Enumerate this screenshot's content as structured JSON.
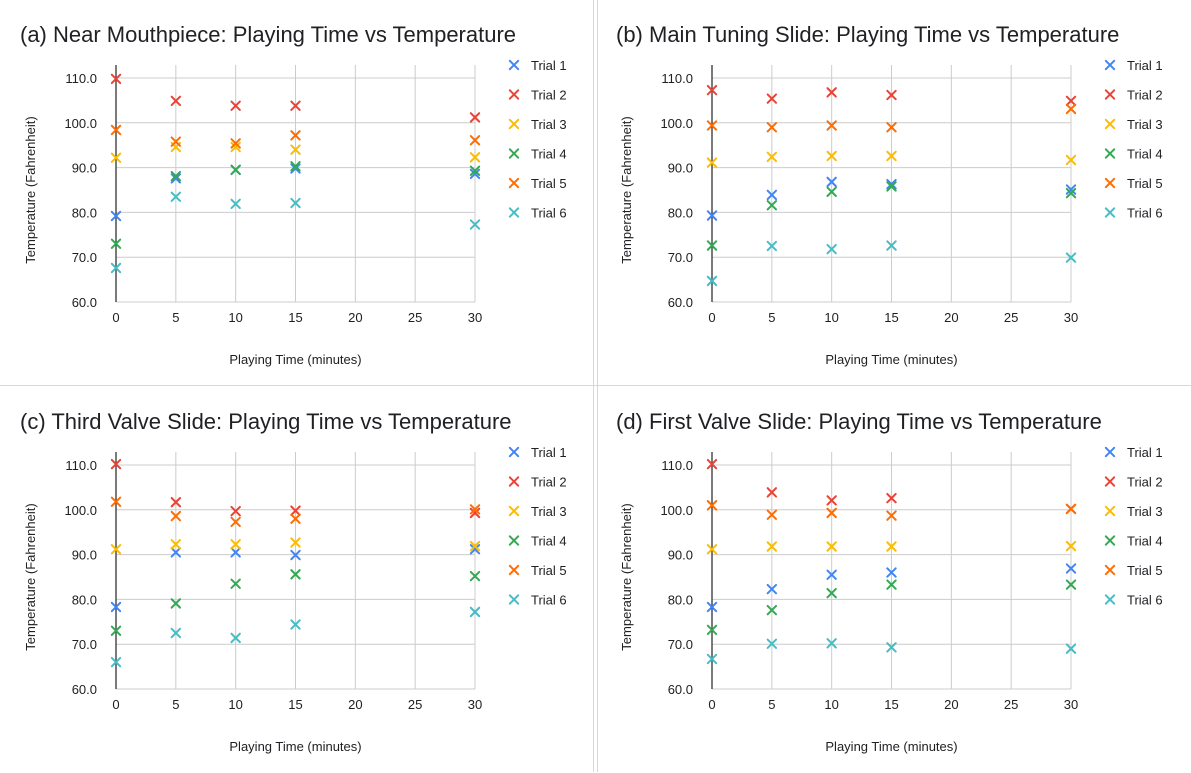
{
  "chart_data": [
    {
      "type": "scatter",
      "title": "(a) Near Mouthpiece: Playing Time vs Temperature",
      "xlabel": "Playing Time (minutes)",
      "ylabel": "Temperature (Fahrenheit)",
      "xlim": [
        0,
        30
      ],
      "ylim": [
        60,
        110
      ],
      "xticks": [
        0,
        5,
        10,
        15,
        20,
        25,
        30
      ],
      "yticks": [
        "60.0",
        "70.0",
        "80.0",
        "90.0",
        "100.0",
        "110.0"
      ],
      "grid": true,
      "legend": "right",
      "marker": "x",
      "x": [
        0,
        5,
        10,
        15,
        30
      ],
      "series": [
        {
          "name": "Trial 1",
          "color": "#4285F4",
          "values": [
            79.2,
            87.6,
            89.5,
            89.8,
            88.6
          ]
        },
        {
          "name": "Trial 2",
          "color": "#EA4335",
          "values": [
            109.8,
            104.9,
            103.8,
            103.8,
            101.2
          ]
        },
        {
          "name": "Trial 3",
          "color": "#FBBC04",
          "values": [
            92.2,
            94.6,
            94.6,
            94.0,
            92.3
          ]
        },
        {
          "name": "Trial 4",
          "color": "#34A853",
          "values": [
            73.0,
            88.1,
            89.5,
            90.3,
            89.3
          ]
        },
        {
          "name": "Trial 5",
          "color": "#FF6D01",
          "values": [
            98.4,
            95.8,
            95.4,
            97.2,
            96.1
          ]
        },
        {
          "name": "Trial 6",
          "color": "#46BDC6",
          "values": [
            67.6,
            83.5,
            81.9,
            82.1,
            77.3
          ]
        }
      ]
    },
    {
      "type": "scatter",
      "title": "(b) Main Tuning Slide: Playing Time vs Temperature",
      "xlabel": "Playing Time (minutes)",
      "ylabel": "Temperature (Fahrenheit)",
      "xlim": [
        0,
        30
      ],
      "ylim": [
        60,
        110
      ],
      "xticks": [
        0,
        5,
        10,
        15,
        20,
        25,
        30
      ],
      "yticks": [
        "60.0",
        "70.0",
        "80.0",
        "90.0",
        "100.0",
        "110.0"
      ],
      "grid": true,
      "legend": "right",
      "marker": "x",
      "x": [
        0,
        5,
        10,
        15,
        30
      ],
      "series": [
        {
          "name": "Trial 1",
          "color": "#4285F4",
          "values": [
            79.3,
            83.9,
            86.8,
            86.3,
            85.1
          ]
        },
        {
          "name": "Trial 2",
          "color": "#EA4335",
          "values": [
            107.3,
            105.4,
            106.8,
            106.2,
            104.9
          ]
        },
        {
          "name": "Trial 3",
          "color": "#FBBC04",
          "values": [
            91.1,
            92.4,
            92.6,
            92.6,
            91.7
          ]
        },
        {
          "name": "Trial 4",
          "color": "#34A853",
          "values": [
            72.6,
            81.6,
            84.6,
            85.8,
            84.3
          ]
        },
        {
          "name": "Trial 5",
          "color": "#FF6D01",
          "values": [
            99.4,
            99.0,
            99.4,
            99.0,
            103.1
          ]
        },
        {
          "name": "Trial 6",
          "color": "#46BDC6",
          "values": [
            64.7,
            72.5,
            71.8,
            72.6,
            69.9
          ]
        }
      ]
    },
    {
      "type": "scatter",
      "title": "(c) Third Valve Slide: Playing Time vs Temperature",
      "xlabel": "Playing Time (minutes)",
      "ylabel": "Temperature (Fahrenheit)",
      "xlim": [
        0,
        30
      ],
      "ylim": [
        60,
        110
      ],
      "xticks": [
        0,
        5,
        10,
        15,
        20,
        25,
        30
      ],
      "yticks": [
        "60.0",
        "70.0",
        "80.0",
        "90.0",
        "100.0",
        "110.0"
      ],
      "grid": true,
      "legend": "right",
      "marker": "x",
      "x": [
        0,
        5,
        10,
        15,
        30
      ],
      "series": [
        {
          "name": "Trial 1",
          "color": "#4285F4",
          "values": [
            78.3,
            90.5,
            90.5,
            89.9,
            91.2
          ]
        },
        {
          "name": "Trial 2",
          "color": "#EA4335",
          "values": [
            110.2,
            101.7,
            99.7,
            99.8,
            99.3
          ]
        },
        {
          "name": "Trial 3",
          "color": "#FBBC04",
          "values": [
            91.2,
            92.3,
            92.3,
            92.7,
            91.9
          ]
        },
        {
          "name": "Trial 4",
          "color": "#34A853",
          "values": [
            73.0,
            79.1,
            83.5,
            85.6,
            85.2
          ]
        },
        {
          "name": "Trial 5",
          "color": "#FF6D01",
          "values": [
            101.8,
            98.6,
            97.3,
            98.0,
            100.1
          ]
        },
        {
          "name": "Trial 6",
          "color": "#46BDC6",
          "values": [
            66.0,
            72.5,
            71.4,
            74.4,
            77.2
          ]
        }
      ]
    },
    {
      "type": "scatter",
      "title": "(d) First Valve Slide: Playing Time vs Temperature",
      "xlabel": "Playing Time (minutes)",
      "ylabel": "Temperature (Fahrenheit)",
      "xlim": [
        0,
        30
      ],
      "ylim": [
        60,
        110
      ],
      "xticks": [
        0,
        5,
        10,
        15,
        20,
        25,
        30
      ],
      "yticks": [
        "60.0",
        "70.0",
        "80.0",
        "90.0",
        "100.0",
        "110.0"
      ],
      "grid": true,
      "legend": "right",
      "marker": "x",
      "x": [
        0,
        5,
        10,
        15,
        30
      ],
      "series": [
        {
          "name": "Trial 1",
          "color": "#4285F4",
          "values": [
            78.3,
            82.3,
            85.5,
            86.0,
            86.9
          ]
        },
        {
          "name": "Trial 2",
          "color": "#EA4335",
          "values": [
            110.2,
            103.9,
            102.1,
            102.6,
            100.2
          ]
        },
        {
          "name": "Trial 3",
          "color": "#FBBC04",
          "values": [
            91.2,
            91.8,
            91.8,
            91.8,
            91.9
          ]
        },
        {
          "name": "Trial 4",
          "color": "#34A853",
          "values": [
            73.2,
            77.6,
            81.4,
            83.3,
            83.3
          ]
        },
        {
          "name": "Trial 5",
          "color": "#FF6D01",
          "values": [
            101.0,
            98.9,
            99.3,
            98.7,
            100.2
          ]
        },
        {
          "name": "Trial 6",
          "color": "#46BDC6",
          "values": [
            66.7,
            70.1,
            70.2,
            69.3,
            69.0
          ]
        }
      ]
    }
  ]
}
